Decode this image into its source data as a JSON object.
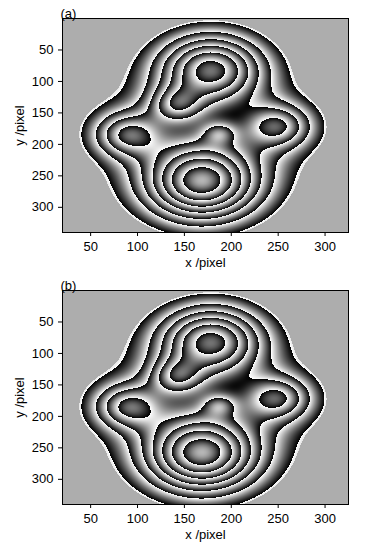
{
  "chart_data": [
    {
      "type": "raster",
      "title": "(a)",
      "x_label": "x /pixel",
      "y_label": "y /pixel",
      "xlim": [
        20,
        325
      ],
      "ylim": [
        340,
        0
      ],
      "xticks": [
        50,
        100,
        150,
        200,
        250,
        300
      ],
      "yticks": [
        50,
        100,
        150,
        200,
        250,
        300
      ],
      "mask_level": 0.9,
      "components": [
        {
          "x": 178,
          "y": 80,
          "height": 5.5,
          "width": 38
        },
        {
          "x": 168,
          "y": 262,
          "height": 6.5,
          "width": 42
        },
        {
          "x": 88,
          "y": 185,
          "height": 3,
          "width": 25
        },
        {
          "x": 250,
          "y": 172,
          "height": 3,
          "width": 25
        },
        {
          "x": 140,
          "y": 138,
          "height": 2.5,
          "width": 20
        },
        {
          "x": 187,
          "y": 183,
          "height": 1.5,
          "width": 13
        },
        {
          "x": 170,
          "y": 180,
          "height": 2,
          "width": 80
        }
      ]
    },
    {
      "type": "raster",
      "title": "(b)",
      "x_label": "x /pixel",
      "y_label": "y /pixel",
      "xlim": [
        20,
        325
      ],
      "ylim": [
        340,
        0
      ],
      "xticks": [
        50,
        100,
        150,
        200,
        250,
        300
      ],
      "yticks": [
        50,
        100,
        150,
        200,
        250,
        300
      ],
      "mask_level": 0.9,
      "components": [
        {
          "x": 178,
          "y": 80,
          "height": 5.5,
          "width": 38
        },
        {
          "x": 168,
          "y": 262,
          "height": 6.5,
          "width": 42
        },
        {
          "x": 88,
          "y": 185,
          "height": 3,
          "width": 25
        },
        {
          "x": 250,
          "y": 172,
          "height": 3,
          "width": 25
        },
        {
          "x": 140,
          "y": 138,
          "height": 2.5,
          "width": 20
        },
        {
          "x": 187,
          "y": 183,
          "height": 1.5,
          "width": 13
        },
        {
          "x": 170,
          "y": 180,
          "height": 2,
          "width": 80
        }
      ]
    }
  ]
}
